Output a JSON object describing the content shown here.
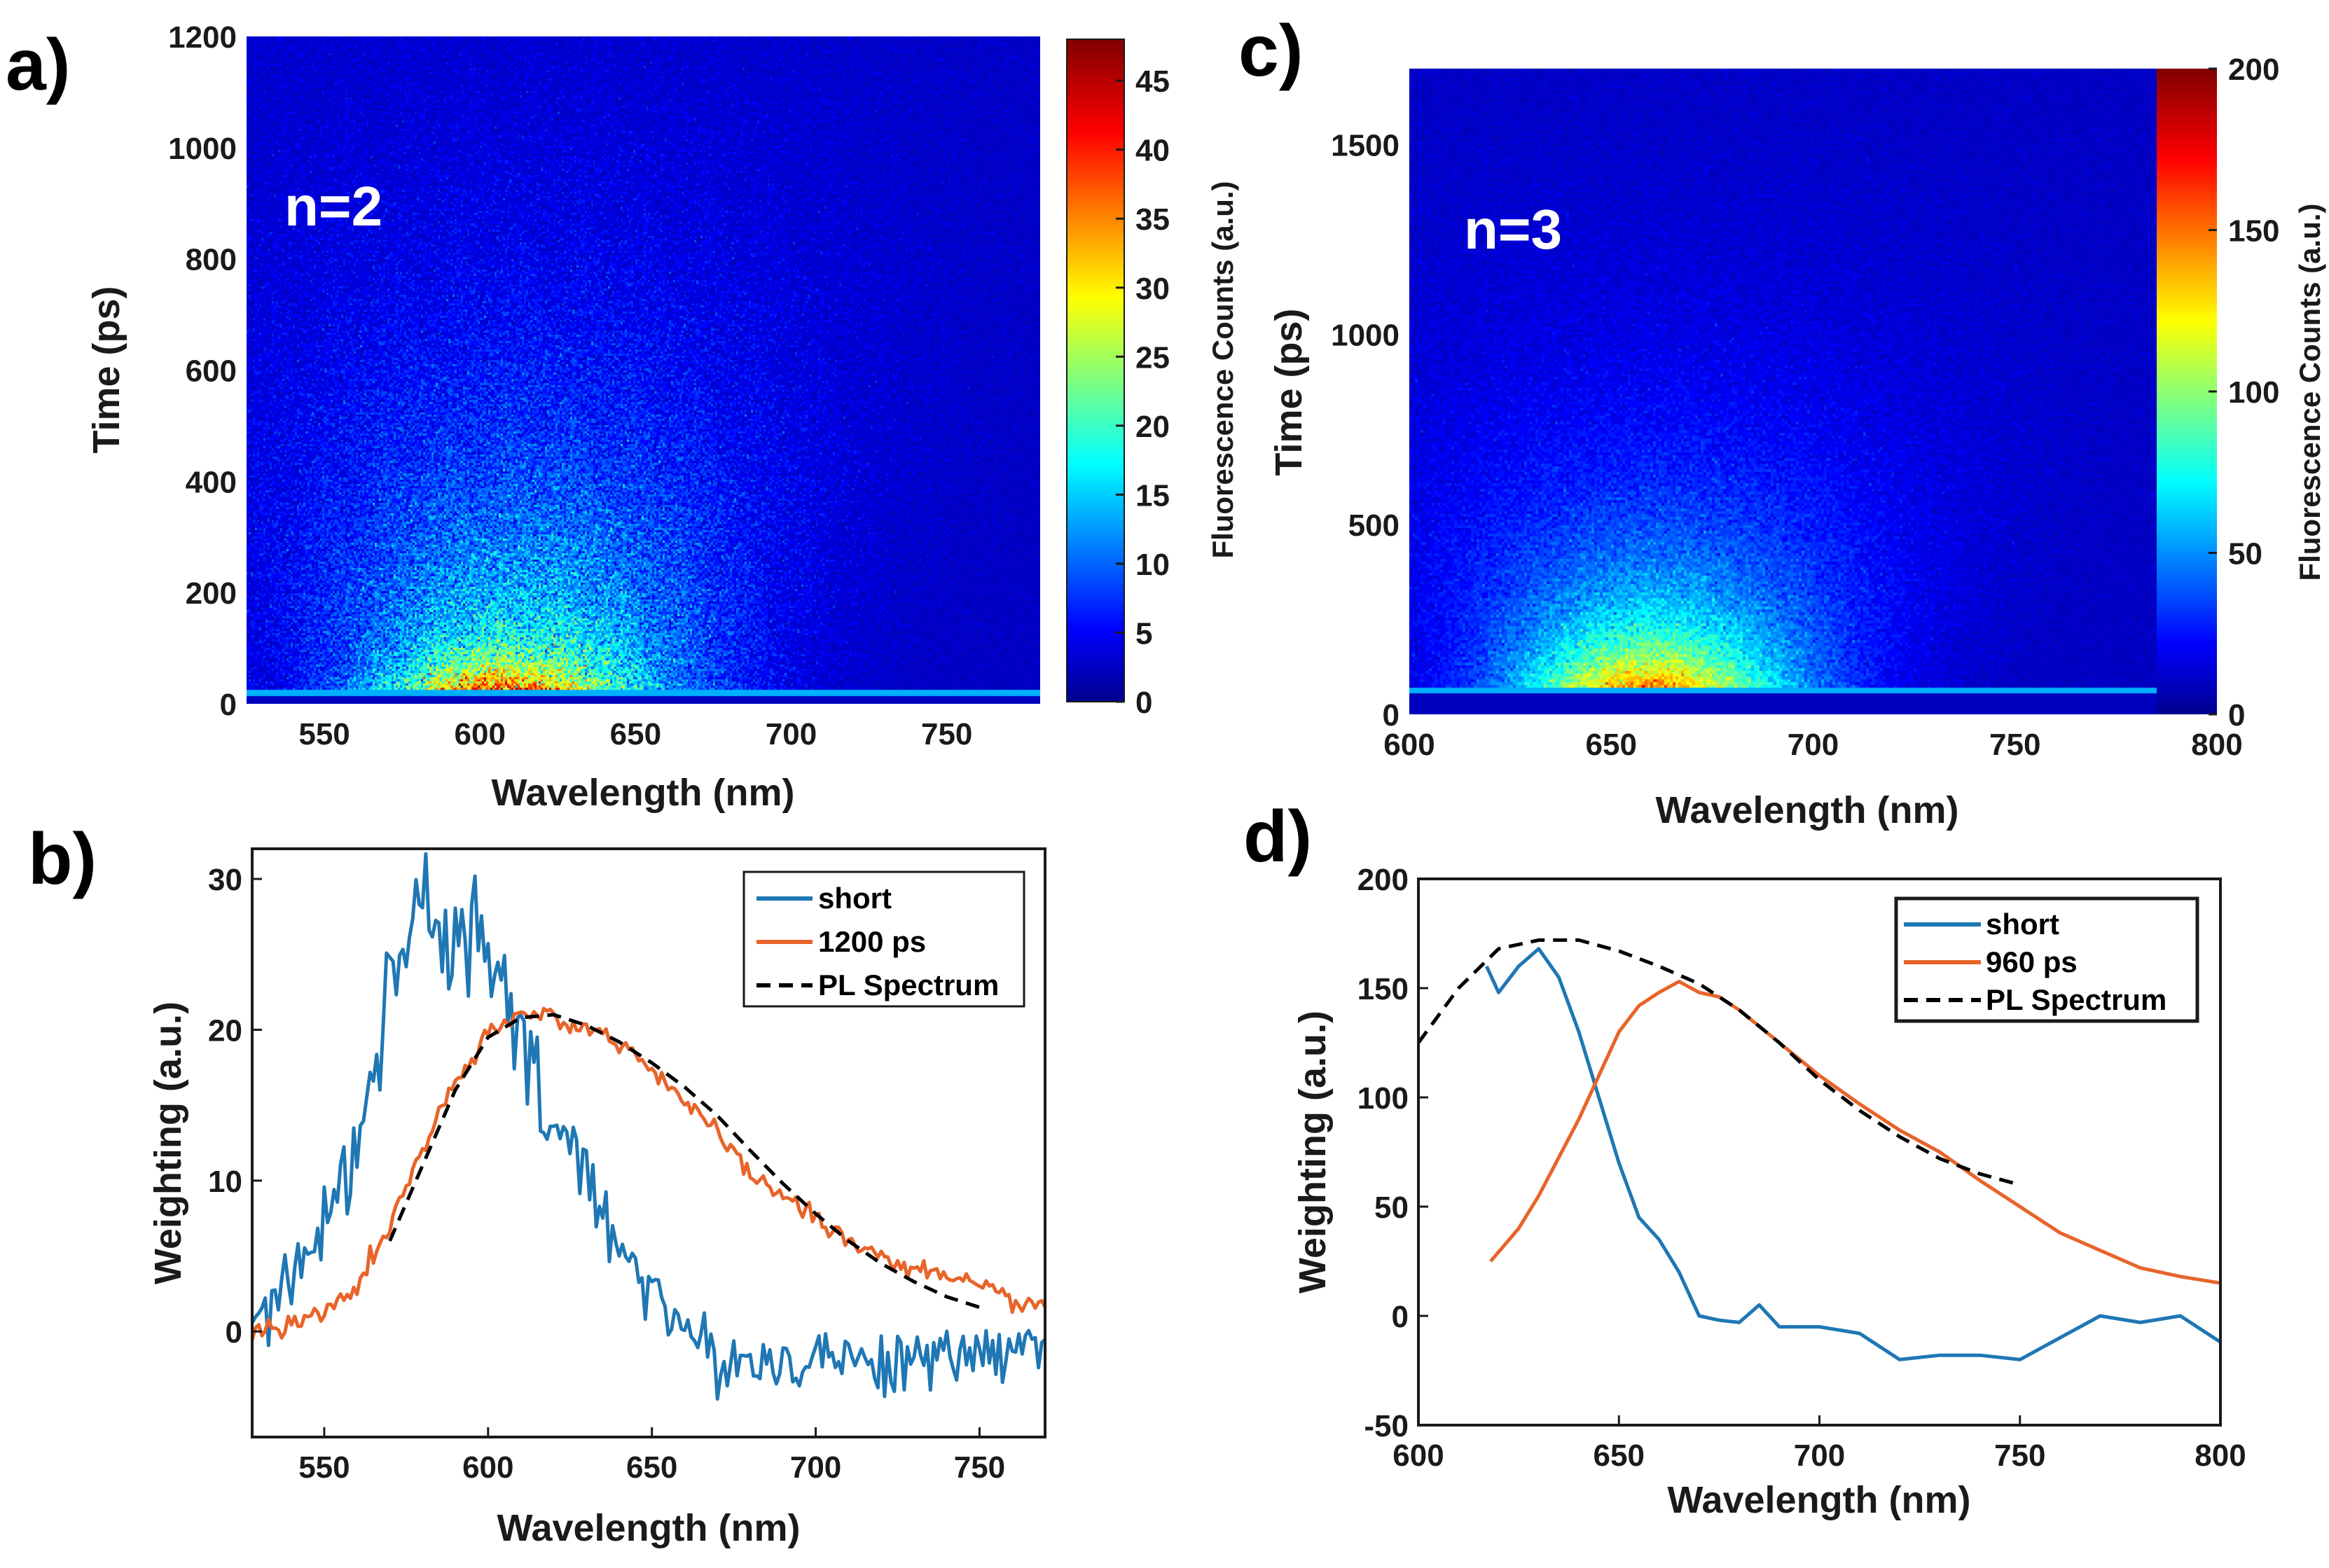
{
  "colors": {
    "short": "#1f77b4",
    "long": "#e8642a",
    "pl": "#000000",
    "colormap": [
      "#00008f",
      "#0000ff",
      "#00ffff",
      "#ffff00",
      "#ff0000",
      "#800000"
    ]
  },
  "chart_data": [
    {
      "panel": "a)",
      "type": "heatmap",
      "annotation": "n=2",
      "xlabel": "Wavelength (nm)",
      "ylabel": "Time (ps)",
      "xlim": [
        525,
        780
      ],
      "ylim": [
        0,
        1200
      ],
      "xticks": [
        550,
        600,
        650,
        700,
        750
      ],
      "yticks": [
        0,
        200,
        400,
        600,
        800,
        1000,
        1200
      ],
      "colorbar": {
        "label": "Fluorescence Counts (a.u.)",
        "lim": [
          0,
          48
        ],
        "ticks": [
          0,
          5,
          10,
          15,
          20,
          25,
          30,
          35,
          40,
          45
        ]
      },
      "emission": {
        "center_nm": 615,
        "width_nm": 40,
        "onset_ps": 25,
        "decay_ps": 380,
        "peak_counts": 45,
        "short_center_nm": 605,
        "short_width_nm": 22,
        "short_decay_ps": 45,
        "short_counts": 20
      }
    },
    {
      "panel": "b)",
      "type": "line",
      "xlabel": "Wavelength (nm)",
      "ylabel": "Weighting (a.u.)",
      "xlim": [
        528,
        770
      ],
      "ylim": [
        -7,
        32
      ],
      "xticks": [
        550,
        600,
        650,
        700,
        750
      ],
      "yticks": [
        0,
        10,
        20,
        30
      ],
      "legend": [
        "short",
        "1200 ps",
        "PL Spectrum"
      ],
      "series": [
        {
          "name": "short",
          "style": "noisy",
          "x": [
            528,
            540,
            550,
            560,
            570,
            575,
            580,
            590,
            600,
            605,
            610,
            620,
            630,
            640,
            650,
            660,
            670,
            680,
            690,
            700,
            720,
            740,
            760,
            770
          ],
          "values": [
            1,
            4,
            7,
            13,
            22,
            26,
            28,
            26,
            25,
            22,
            18,
            14,
            10,
            6,
            3,
            0,
            -2,
            -2,
            -2,
            -1.5,
            -2,
            -2,
            -1,
            -0.5
          ]
        },
        {
          "name": "1200 ps",
          "style": "noisy",
          "x": [
            528,
            540,
            550,
            560,
            570,
            580,
            590,
            600,
            610,
            620,
            630,
            640,
            650,
            660,
            670,
            680,
            690,
            700,
            710,
            720,
            730,
            740,
            750,
            760,
            770
          ],
          "values": [
            0,
            0.4,
            1.2,
            3,
            7,
            12,
            16.5,
            19.5,
            21,
            21,
            20,
            19.2,
            17.5,
            15.3,
            13,
            10.5,
            9,
            7.5,
            6,
            5,
            4.2,
            3.5,
            2.8,
            2.1,
            1.6
          ]
        },
        {
          "name": "PL Spectrum",
          "style": "dashed",
          "x": [
            570,
            580,
            590,
            600,
            610,
            620,
            630,
            640,
            650,
            660,
            670,
            680,
            690,
            700,
            710,
            720,
            730,
            740,
            750
          ],
          "values": [
            6,
            11,
            16,
            19.5,
            20.8,
            21,
            20.3,
            19.2,
            17.8,
            16.2,
            14.3,
            12,
            9.8,
            7.8,
            6,
            4.5,
            3.3,
            2.3,
            1.6
          ]
        }
      ]
    },
    {
      "panel": "c)",
      "type": "heatmap",
      "annotation": "n=3",
      "xlabel": "Wavelength (nm)",
      "ylabel": "Time (ps)",
      "xlim": [
        600,
        800
      ],
      "ylim": [
        0,
        1700
      ],
      "xticks": [
        600,
        650,
        700,
        750,
        800
      ],
      "yticks": [
        0,
        500,
        1000,
        1500
      ],
      "colorbar": {
        "label": "Fluorescence Counts (a.u.)",
        "lim": [
          0,
          200
        ],
        "ticks": [
          0,
          50,
          100,
          150,
          200
        ]
      },
      "emission": {
        "center_nm": 668,
        "width_nm": 32,
        "onset_ps": 70,
        "decay_ps": 420,
        "peak_counts": 180,
        "short_center_nm": 662,
        "short_width_nm": 20,
        "short_decay_ps": 120,
        "short_counts": 70
      }
    },
    {
      "panel": "d)",
      "type": "line",
      "xlabel": "Wavelength (nm)",
      "ylabel": "Weighting (a.u.)",
      "xlim": [
        600,
        800
      ],
      "ylim": [
        -50,
        200
      ],
      "xticks": [
        600,
        650,
        700,
        750,
        800
      ],
      "yticks": [
        -50,
        0,
        50,
        100,
        150,
        200
      ],
      "legend": [
        "short",
        "960 ps",
        "PL Spectrum"
      ],
      "series": [
        {
          "name": "short",
          "style": "solid",
          "x": [
            617,
            620,
            625,
            630,
            635,
            640,
            645,
            650,
            655,
            660,
            665,
            670,
            675,
            680,
            685,
            690,
            700,
            710,
            720,
            730,
            740,
            750,
            760,
            770,
            780,
            790,
            800
          ],
          "values": [
            160,
            148,
            160,
            168,
            155,
            130,
            100,
            70,
            45,
            35,
            20,
            0,
            -2,
            -3,
            5,
            -5,
            -5,
            -8,
            -20,
            -18,
            -18,
            -20,
            -10,
            0,
            -3,
            0,
            -12
          ]
        },
        {
          "name": "960 ps",
          "style": "solid",
          "x": [
            618,
            625,
            630,
            640,
            650,
            655,
            660,
            665,
            670,
            675,
            680,
            690,
            700,
            710,
            720,
            730,
            740,
            750,
            760,
            770,
            780,
            790,
            800
          ],
          "values": [
            25,
            40,
            55,
            90,
            130,
            142,
            148,
            153,
            148,
            146,
            140,
            125,
            110,
            97,
            85,
            75,
            62,
            50,
            38,
            30,
            22,
            18,
            15
          ]
        },
        {
          "name": "PL Spectrum",
          "style": "dashed",
          "x": [
            600,
            610,
            620,
            630,
            640,
            650,
            660,
            670,
            680,
            690,
            700,
            710,
            720,
            730,
            740,
            750
          ],
          "values": [
            125,
            150,
            168,
            172,
            172,
            167,
            160,
            152,
            140,
            125,
            108,
            94,
            82,
            72,
            65,
            60
          ]
        }
      ]
    }
  ]
}
